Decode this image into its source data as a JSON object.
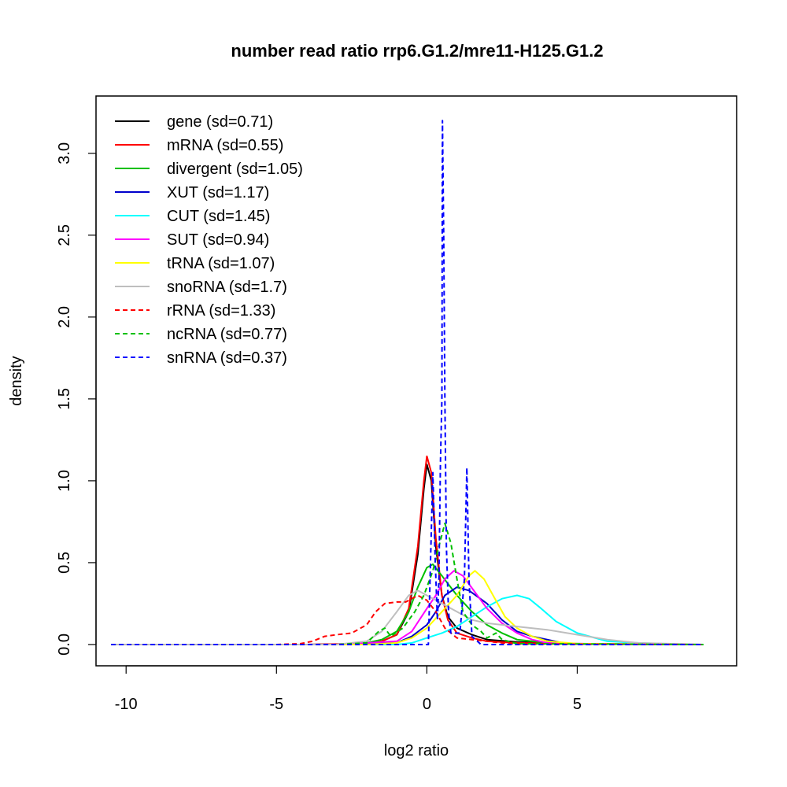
{
  "chart_data": {
    "type": "line",
    "title": "number read ratio rrp6.G1.2/mre11-H125.G1.2",
    "xlabel": "log2 ratio",
    "ylabel": "density",
    "xlim": [
      -11.0,
      10.3
    ],
    "ylim": [
      -0.13,
      3.35
    ],
    "x_ticks": [
      -10,
      -5,
      0,
      5
    ],
    "y_ticks": [
      0.0,
      0.5,
      1.0,
      1.5,
      2.0,
      2.5,
      3.0
    ],
    "x_tick_labels": [
      "-10",
      "-5",
      "0",
      "5"
    ],
    "y_tick_labels": [
      "0.0",
      "0.5",
      "1.0",
      "1.5",
      "2.0",
      "2.5",
      "3.0"
    ],
    "legend_position": "top-left",
    "grid": false,
    "series": [
      {
        "name": "gene (sd=0.71)",
        "color": "#000000",
        "dash": "solid",
        "points": [
          [
            -10.5,
            0
          ],
          [
            -4.0,
            0
          ],
          [
            -2.0,
            0.005
          ],
          [
            -1.5,
            0.02
          ],
          [
            -1.0,
            0.06
          ],
          [
            -0.6,
            0.2
          ],
          [
            -0.3,
            0.55
          ],
          [
            -0.1,
            0.95
          ],
          [
            0.0,
            1.1
          ],
          [
            0.15,
            1.0
          ],
          [
            0.3,
            0.6
          ],
          [
            0.5,
            0.3
          ],
          [
            0.7,
            0.17
          ],
          [
            1.0,
            0.1
          ],
          [
            1.5,
            0.06
          ],
          [
            2.0,
            0.03
          ],
          [
            3.0,
            0.015
          ],
          [
            5.0,
            0.005
          ],
          [
            9.2,
            0
          ]
        ]
      },
      {
        "name": "mRNA (sd=0.55)",
        "color": "#ff0000",
        "dash": "solid",
        "points": [
          [
            -10.5,
            0
          ],
          [
            -4.0,
            0
          ],
          [
            -2.0,
            0.005
          ],
          [
            -1.5,
            0.02
          ],
          [
            -1.0,
            0.06
          ],
          [
            -0.6,
            0.22
          ],
          [
            -0.3,
            0.6
          ],
          [
            -0.1,
            1.0
          ],
          [
            0.0,
            1.15
          ],
          [
            0.15,
            1.05
          ],
          [
            0.3,
            0.65
          ],
          [
            0.5,
            0.3
          ],
          [
            0.7,
            0.15
          ],
          [
            1.0,
            0.07
          ],
          [
            1.5,
            0.04
          ],
          [
            2.0,
            0.02
          ],
          [
            3.0,
            0.01
          ],
          [
            5.0,
            0.003
          ],
          [
            9.2,
            0
          ]
        ]
      },
      {
        "name": "divergent (sd=1.05)",
        "color": "#00c000",
        "dash": "solid",
        "points": [
          [
            -10.5,
            0
          ],
          [
            -3.0,
            0
          ],
          [
            -2.0,
            0.01
          ],
          [
            -1.5,
            0.03
          ],
          [
            -1.0,
            0.08
          ],
          [
            -0.6,
            0.2
          ],
          [
            -0.3,
            0.35
          ],
          [
            0.0,
            0.47
          ],
          [
            0.2,
            0.49
          ],
          [
            0.5,
            0.42
          ],
          [
            1.0,
            0.3
          ],
          [
            1.5,
            0.2
          ],
          [
            2.0,
            0.12
          ],
          [
            2.5,
            0.07
          ],
          [
            3.0,
            0.03
          ],
          [
            4.0,
            0.01
          ],
          [
            5.0,
            0.003
          ],
          [
            9.2,
            0
          ]
        ]
      },
      {
        "name": "XUT (sd=1.17)",
        "color": "#0000cc",
        "dash": "solid",
        "points": [
          [
            -10.5,
            0
          ],
          [
            -3.0,
            0
          ],
          [
            -1.0,
            0.01
          ],
          [
            -0.5,
            0.05
          ],
          [
            0.0,
            0.12
          ],
          [
            0.3,
            0.2
          ],
          [
            0.6,
            0.3
          ],
          [
            1.0,
            0.35
          ],
          [
            1.4,
            0.33
          ],
          [
            2.0,
            0.25
          ],
          [
            2.5,
            0.15
          ],
          [
            3.0,
            0.08
          ],
          [
            3.5,
            0.05
          ],
          [
            4.0,
            0.03
          ],
          [
            4.5,
            0.01
          ],
          [
            5.0,
            0.003
          ],
          [
            9.2,
            0
          ]
        ]
      },
      {
        "name": "CUT (sd=1.45)",
        "color": "#00ffff",
        "dash": "solid",
        "points": [
          [
            -10.5,
            0
          ],
          [
            -1.0,
            0
          ],
          [
            -0.5,
            0.01
          ],
          [
            0.0,
            0.04
          ],
          [
            0.5,
            0.07
          ],
          [
            1.0,
            0.11
          ],
          [
            1.5,
            0.17
          ],
          [
            2.0,
            0.23
          ],
          [
            2.5,
            0.28
          ],
          [
            3.0,
            0.3
          ],
          [
            3.4,
            0.28
          ],
          [
            3.8,
            0.22
          ],
          [
            4.3,
            0.14
          ],
          [
            5.0,
            0.07
          ],
          [
            6.0,
            0.02
          ],
          [
            7.0,
            0.01
          ],
          [
            8.0,
            0.003
          ],
          [
            9.2,
            0
          ]
        ]
      },
      {
        "name": "SUT (sd=0.94)",
        "color": "#ff00ff",
        "dash": "solid",
        "points": [
          [
            -10.5,
            0
          ],
          [
            -3.0,
            0
          ],
          [
            -1.0,
            0.02
          ],
          [
            -0.5,
            0.08
          ],
          [
            0.0,
            0.22
          ],
          [
            0.3,
            0.3
          ],
          [
            0.6,
            0.4
          ],
          [
            0.9,
            0.45
          ],
          [
            1.2,
            0.42
          ],
          [
            1.6,
            0.32
          ],
          [
            2.0,
            0.22
          ],
          [
            2.5,
            0.13
          ],
          [
            3.0,
            0.07
          ],
          [
            3.5,
            0.03
          ],
          [
            4.0,
            0.01
          ],
          [
            5.0,
            0.003
          ],
          [
            9.2,
            0
          ]
        ]
      },
      {
        "name": "tRNA (sd=1.07)",
        "color": "#ffff00",
        "dash": "solid",
        "points": [
          [
            -10.5,
            0
          ],
          [
            -2.0,
            0
          ],
          [
            -1.0,
            0.01
          ],
          [
            -0.5,
            0.04
          ],
          [
            0.0,
            0.1
          ],
          [
            0.5,
            0.2
          ],
          [
            1.0,
            0.3
          ],
          [
            1.4,
            0.42
          ],
          [
            1.6,
            0.45
          ],
          [
            1.9,
            0.4
          ],
          [
            2.2,
            0.3
          ],
          [
            2.6,
            0.17
          ],
          [
            3.0,
            0.1
          ],
          [
            3.5,
            0.05
          ],
          [
            4.0,
            0.02
          ],
          [
            5.0,
            0.005
          ],
          [
            9.2,
            0
          ]
        ]
      },
      {
        "name": "snoRNA (sd=1.7)",
        "color": "#bebebe",
        "dash": "solid",
        "points": [
          [
            -10.5,
            0
          ],
          [
            -3.0,
            0
          ],
          [
            -2.0,
            0.02
          ],
          [
            -1.5,
            0.08
          ],
          [
            -1.0,
            0.2
          ],
          [
            -0.6,
            0.3
          ],
          [
            -0.3,
            0.33
          ],
          [
            0.0,
            0.3
          ],
          [
            0.5,
            0.25
          ],
          [
            1.0,
            0.2
          ],
          [
            1.5,
            0.15
          ],
          [
            2.0,
            0.13
          ],
          [
            3.0,
            0.11
          ],
          [
            4.0,
            0.09
          ],
          [
            5.0,
            0.06
          ],
          [
            6.0,
            0.03
          ],
          [
            7.0,
            0.01
          ],
          [
            9.2,
            0
          ]
        ]
      },
      {
        "name": "rRNA (sd=1.33)",
        "color": "#ff0000",
        "dash": "dashed",
        "points": [
          [
            -10.5,
            0
          ],
          [
            -5.0,
            0
          ],
          [
            -4.2,
            0.005
          ],
          [
            -3.8,
            0.02
          ],
          [
            -3.4,
            0.05
          ],
          [
            -3.0,
            0.06
          ],
          [
            -2.5,
            0.07
          ],
          [
            -2.0,
            0.12
          ],
          [
            -1.7,
            0.2
          ],
          [
            -1.4,
            0.25
          ],
          [
            -1.0,
            0.26
          ],
          [
            -0.7,
            0.26
          ],
          [
            -0.5,
            0.28
          ],
          [
            -0.3,
            0.3
          ],
          [
            0.0,
            0.27
          ],
          [
            0.3,
            0.2
          ],
          [
            0.6,
            0.1
          ],
          [
            1.0,
            0.04
          ],
          [
            1.5,
            0.03
          ],
          [
            2.0,
            0.02
          ],
          [
            2.5,
            0.01
          ],
          [
            3.0,
            0.003
          ],
          [
            9.2,
            0
          ]
        ]
      },
      {
        "name": "ncRNA (sd=0.77)",
        "color": "#00c000",
        "dash": "dashed",
        "points": [
          [
            -10.5,
            0
          ],
          [
            -3.0,
            0
          ],
          [
            -2.0,
            0.01
          ],
          [
            -1.6,
            0.08
          ],
          [
            -1.4,
            0.1
          ],
          [
            -1.2,
            0.05
          ],
          [
            -0.8,
            0.1
          ],
          [
            -0.4,
            0.2
          ],
          [
            -0.1,
            0.3
          ],
          [
            0.2,
            0.45
          ],
          [
            0.4,
            0.6
          ],
          [
            0.6,
            0.74
          ],
          [
            0.8,
            0.62
          ],
          [
            1.0,
            0.4
          ],
          [
            1.2,
            0.2
          ],
          [
            1.5,
            0.12
          ],
          [
            1.8,
            0.08
          ],
          [
            2.0,
            0.04
          ],
          [
            2.3,
            0.07
          ],
          [
            2.5,
            0.03
          ],
          [
            3.0,
            0.005
          ],
          [
            9.2,
            0
          ]
        ]
      },
      {
        "name": "snRNA (sd=0.37)",
        "color": "#0000ff",
        "dash": "dashed",
        "points": [
          [
            -10.5,
            0
          ],
          [
            -0.2,
            0
          ],
          [
            0.05,
            0
          ],
          [
            0.12,
            0.5
          ],
          [
            0.2,
            1.05
          ],
          [
            0.28,
            0.5
          ],
          [
            0.35,
            0.15
          ],
          [
            0.4,
            0.4
          ],
          [
            0.45,
            1.1
          ],
          [
            0.5,
            1.5
          ],
          [
            0.52,
            3.2
          ],
          [
            0.56,
            2.5
          ],
          [
            0.6,
            1.5
          ],
          [
            0.65,
            0.6
          ],
          [
            0.72,
            0.2
          ],
          [
            0.8,
            0.07
          ],
          [
            1.1,
            0.07
          ],
          [
            1.25,
            0.4
          ],
          [
            1.33,
            1.08
          ],
          [
            1.4,
            0.4
          ],
          [
            1.5,
            0.05
          ],
          [
            1.8,
            0
          ],
          [
            9.2,
            0
          ]
        ]
      }
    ]
  }
}
